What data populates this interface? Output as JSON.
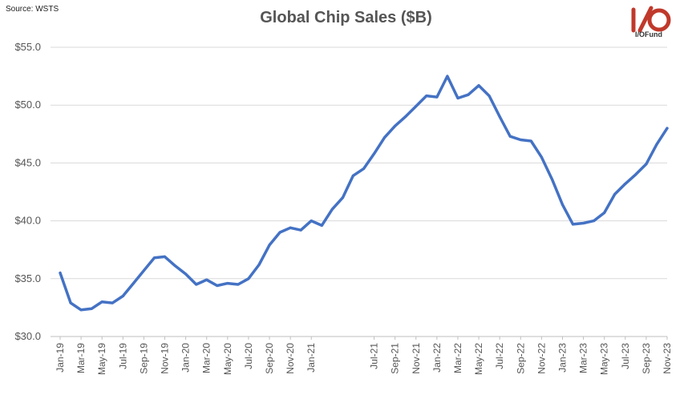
{
  "source": "Source: WSTS",
  "logo": {
    "text": "I/OFund",
    "color": "#c0392b"
  },
  "chart_data": {
    "type": "line",
    "title": "Global Chip Sales ($B)",
    "xlabel": "",
    "ylabel": "",
    "ylim": [
      30,
      55
    ],
    "yticks": [
      "$55.0",
      "$50.0",
      "$45.0",
      "$40.0",
      "$35.0",
      "$30.0"
    ],
    "ytick_values": [
      55,
      50,
      45,
      40,
      35,
      30
    ],
    "categories": [
      "Jan-19",
      "Feb-19",
      "Mar-19",
      "Apr-19",
      "May-19",
      "Jun-19",
      "Jul-19",
      "Aug-19",
      "Sep-19",
      "Oct-19",
      "Nov-19",
      "Dec-19",
      "Jan-20",
      "Feb-20",
      "Mar-20",
      "Apr-20",
      "May-20",
      "Jun-20",
      "Jul-20",
      "Aug-20",
      "Sep-20",
      "Oct-20",
      "Nov-20",
      "Dec-20",
      "Jan-21",
      "Feb-21",
      "Mar-21",
      "Apr-21",
      "May-21",
      "Jun-21",
      "Jul-21",
      "Aug-21",
      "Sep-21",
      "Oct-21",
      "Nov-21",
      "Dec-21",
      "Jan-22",
      "Feb-22",
      "Mar-22",
      "Apr-22",
      "May-22",
      "Jun-22",
      "Jul-22",
      "Aug-22",
      "Sep-22",
      "Oct-22",
      "Nov-22",
      "Dec-22",
      "Jan-23",
      "Feb-23",
      "Mar-23",
      "Apr-23",
      "May-23",
      "Jun-23",
      "Jul-23",
      "Aug-23",
      "Sep-23",
      "Oct-23",
      "Nov-23"
    ],
    "x_tick_labels": [
      "Jan-19",
      "Mar-19",
      "May-19",
      "Jul-19",
      "Sep-19",
      "Nov-19",
      "Jan-20",
      "Mar-20",
      "May-20",
      "Jul-20",
      "Sep-20",
      "Nov-20",
      "Jan-21",
      "Jul-21",
      "Sep-21",
      "Nov-21",
      "Jan-22",
      "Mar-22",
      "May-22",
      "Jul-22",
      "Sep-22",
      "Nov-22",
      "Jan-23",
      "Mar-23",
      "May-23",
      "Jul-23",
      "Sep-23",
      "Nov-23"
    ],
    "series": [
      {
        "name": "Global Chip Sales",
        "color": "#4472c4",
        "values": [
          35.5,
          32.9,
          32.3,
          32.4,
          33.0,
          32.9,
          33.5,
          34.6,
          35.7,
          36.8,
          36.9,
          36.1,
          35.4,
          34.5,
          34.9,
          34.4,
          34.6,
          34.5,
          35.0,
          36.2,
          37.9,
          39.0,
          39.4,
          39.2,
          40.0,
          39.6,
          41.0,
          42.0,
          43.9,
          44.5,
          45.8,
          47.2,
          48.2,
          49.0,
          49.9,
          50.8,
          50.7,
          52.5,
          50.6,
          50.9,
          51.7,
          50.8,
          49.0,
          47.3,
          47.0,
          46.9,
          45.5,
          43.6,
          41.4,
          39.7,
          39.8,
          40.0,
          40.7,
          42.3,
          43.2,
          44.0,
          44.9,
          46.6,
          48.0
        ]
      }
    ]
  }
}
